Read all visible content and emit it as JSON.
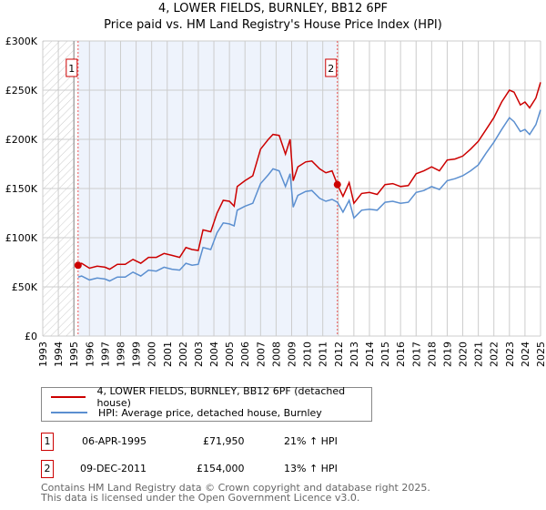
{
  "chart_data": {
    "type": "line",
    "title": "4, LOWER FIELDS, BURNLEY, BB12 6PF",
    "subtitle": "Price paid vs. HM Land Registry's House Price Index (HPI)",
    "xlim": [
      1993,
      2025
    ],
    "ylim": [
      0,
      300000
    ],
    "x_ticks": [
      "1993",
      "1994",
      "1995",
      "1996",
      "1997",
      "1998",
      "1999",
      "2000",
      "2001",
      "2002",
      "2003",
      "2004",
      "2005",
      "2006",
      "2007",
      "2008",
      "2009",
      "2010",
      "2011",
      "2012",
      "2013",
      "2014",
      "2015",
      "2016",
      "2017",
      "2018",
      "2019",
      "2020",
      "2021",
      "2022",
      "2023",
      "2024",
      "2025"
    ],
    "y_ticks": [
      {
        "v": 0,
        "label": "£0"
      },
      {
        "v": 50000,
        "label": "£50K"
      },
      {
        "v": 100000,
        "label": "£100K"
      },
      {
        "v": 150000,
        "label": "£150K"
      },
      {
        "v": 200000,
        "label": "£200K"
      },
      {
        "v": 250000,
        "label": "£250K"
      },
      {
        "v": 300000,
        "label": "£300K"
      }
    ],
    "grid": true,
    "x": [
      1995.27,
      1995.5,
      1996,
      1996.5,
      1997,
      1997.3,
      1997.8,
      1998.3,
      1998.8,
      1999.3,
      1999.8,
      2000.3,
      2000.8,
      2001.3,
      2001.8,
      2002.2,
      2002.6,
      2003,
      2003.3,
      2003.8,
      2004.2,
      2004.6,
      2005,
      2005.3,
      2005.5,
      2006,
      2006.5,
      2007,
      2007.5,
      2007.8,
      2008.2,
      2008.6,
      2008.9,
      2009.1,
      2009.4,
      2009.9,
      2010.3,
      2010.8,
      2011.2,
      2011.6,
      2011.94,
      2012.3,
      2012.7,
      2013,
      2013.5,
      2014,
      2014.5,
      2015,
      2015.5,
      2016,
      2016.5,
      2017,
      2017.5,
      2018,
      2018.5,
      2019,
      2019.5,
      2020,
      2020.5,
      2021,
      2021.5,
      2022,
      2022.5,
      2023,
      2023.3,
      2023.7,
      2024,
      2024.3,
      2024.7,
      2025
    ],
    "series": [
      {
        "name": "4, LOWER FIELDS, BURNLEY, BB12 6PF (detached house)",
        "color": "#cc0000",
        "values": [
          71950,
          74000,
          69000,
          71000,
          70000,
          68000,
          73000,
          73000,
          78000,
          74000,
          80000,
          80000,
          84000,
          82000,
          80000,
          90000,
          88000,
          87000,
          108000,
          106000,
          125000,
          138000,
          137000,
          132000,
          152000,
          158000,
          163000,
          190000,
          200000,
          205000,
          204000,
          185000,
          200000,
          158000,
          172000,
          177000,
          178000,
          170000,
          166000,
          168000,
          154000,
          142000,
          156000,
          135000,
          145000,
          146000,
          144000,
          154000,
          155000,
          152000,
          153000,
          165000,
          168000,
          172000,
          168000,
          179000,
          180000,
          183000,
          190000,
          198000,
          210000,
          222000,
          238000,
          250000,
          248000,
          235000,
          238000,
          232000,
          242000,
          258000
        ]
      },
      {
        "name": "HPI: Average price, detached house, Burnley",
        "color": "#5b8fd0",
        "values": [
          60000,
          61000,
          57000,
          59000,
          58000,
          56000,
          60000,
          60000,
          65000,
          61000,
          67000,
          66000,
          70000,
          68000,
          67000,
          74000,
          72000,
          73000,
          90000,
          88000,
          105000,
          115000,
          114000,
          112000,
          128000,
          132000,
          135000,
          155000,
          164000,
          170000,
          168000,
          152000,
          165000,
          131000,
          143000,
          147000,
          148000,
          140000,
          137000,
          139000,
          136000,
          126000,
          138000,
          120000,
          128000,
          129000,
          128000,
          136000,
          137000,
          135000,
          136000,
          146000,
          148000,
          152000,
          149000,
          158000,
          160000,
          163000,
          168000,
          174000,
          186000,
          197000,
          210000,
          222000,
          218000,
          208000,
          210000,
          205000,
          215000,
          230000
        ]
      }
    ],
    "sales": [
      {
        "id": "1",
        "x": 1995.27,
        "value": 71950
      },
      {
        "id": "2",
        "x": 2011.94,
        "value": 154000
      }
    ],
    "shaded_range": [
      1995.27,
      2011.94
    ],
    "hatched_range": [
      1993,
      1995
    ]
  },
  "legend": {
    "item1": "4, LOWER FIELDS, BURNLEY, BB12 6PF (detached house)",
    "item2": "HPI: Average price, detached house, Burnley"
  },
  "sales_table": [
    {
      "id": "1",
      "date": "06-APR-1995",
      "price": "£71,950",
      "hpi": "21% ↑ HPI"
    },
    {
      "id": "2",
      "date": "09-DEC-2011",
      "price": "£154,000",
      "hpi": "13% ↑ HPI"
    }
  ],
  "footer": {
    "line1": "Contains HM Land Registry data © Crown copyright and database right 2025.",
    "line2": "This data is licensed under the Open Government Licence v3.0."
  }
}
